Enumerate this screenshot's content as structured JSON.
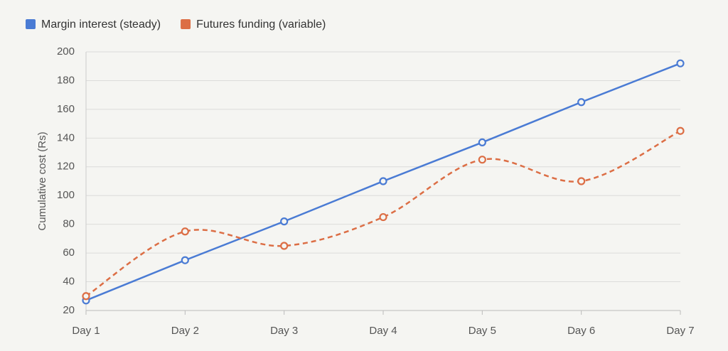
{
  "chart_data": {
    "type": "line",
    "y_label": "Cumulative cost (Rs)",
    "categories": [
      "Day 1",
      "Day 2",
      "Day 3",
      "Day 4",
      "Day 5",
      "Day 6",
      "Day 7"
    ],
    "series": [
      {
        "name": "Margin interest (steady)",
        "color": "#4a7bd4",
        "values": [
          27,
          55,
          82,
          110,
          137,
          165,
          192
        ],
        "dashed": false,
        "smooth": false
      },
      {
        "name": "Futures funding (variable)",
        "color": "#dc6e45",
        "values": [
          30,
          75,
          65,
          85,
          125,
          110,
          145
        ],
        "dashed": true,
        "smooth": true
      }
    ],
    "ylim": [
      20,
      200
    ],
    "yticks": [
      20,
      40,
      60,
      80,
      100,
      120,
      140,
      160,
      180,
      200
    ],
    "grid": true
  }
}
